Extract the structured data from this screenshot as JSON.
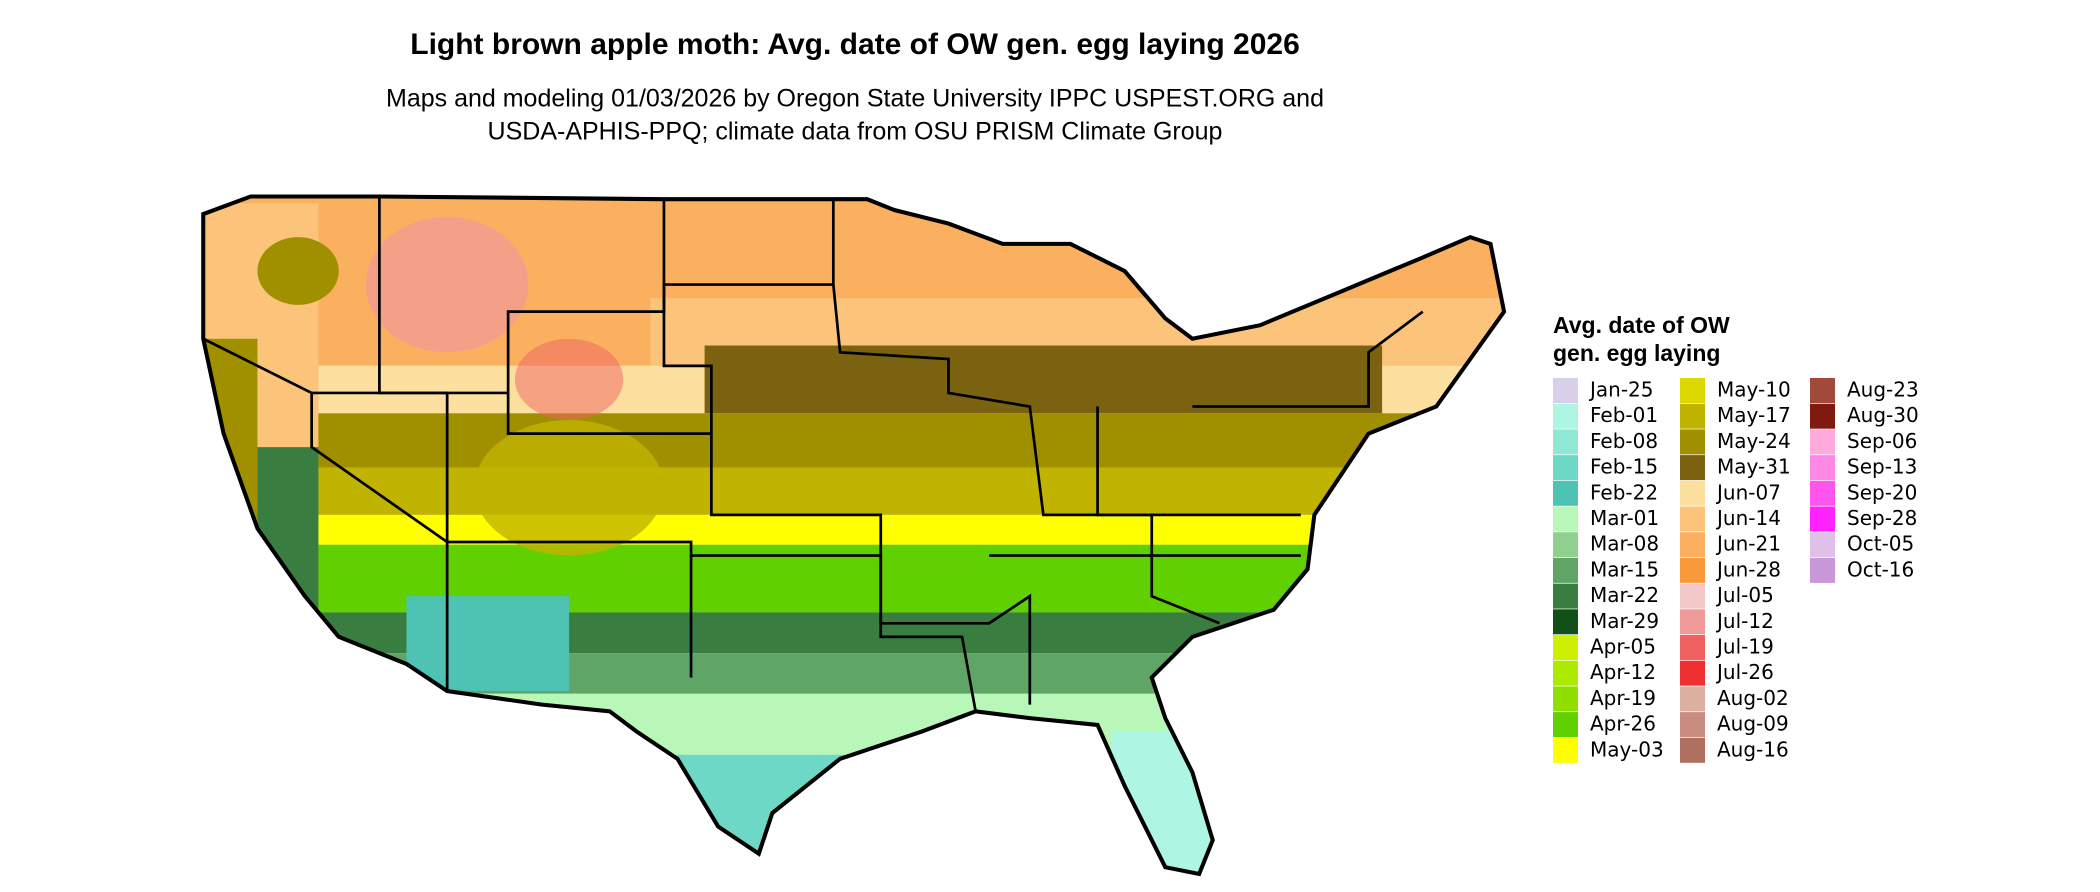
{
  "header": {
    "title": "Light brown apple moth: Avg. date of OW gen. egg laying 2026",
    "subtitle": [
      "Maps and modeling 01/03/2026 by Oregon State University IPPC USPEST.ORG and",
      "USDA-APHIS-PPQ; climate data from OSU PRISM Climate Group"
    ]
  },
  "legend": {
    "title": [
      "Avg. date of OW",
      "gen. egg laying"
    ],
    "items": [
      {
        "label": "Jan-25",
        "color": "#d8d0ea"
      },
      {
        "label": "Feb-01",
        "color": "#aef5e3"
      },
      {
        "label": "Feb-08",
        "color": "#8fe8d4"
      },
      {
        "label": "Feb-15",
        "color": "#6dd8c6"
      },
      {
        "label": "Feb-22",
        "color": "#4ec3b4"
      },
      {
        "label": "Mar-01",
        "color": "#b8f7b8"
      },
      {
        "label": "Mar-08",
        "color": "#8fd08f"
      },
      {
        "label": "Mar-15",
        "color": "#5fa565"
      },
      {
        "label": "Mar-22",
        "color": "#3a7d40"
      },
      {
        "label": "Mar-29",
        "color": "#12501a"
      },
      {
        "label": "Apr-05",
        "color": "#ccf000"
      },
      {
        "label": "Apr-12",
        "color": "#aeea00"
      },
      {
        "label": "Apr-19",
        "color": "#8fe000"
      },
      {
        "label": "Apr-26",
        "color": "#60d000"
      },
      {
        "label": "May-03",
        "color": "#ffff00"
      },
      {
        "label": "May-10",
        "color": "#ddd800"
      },
      {
        "label": "May-17",
        "color": "#c0b400"
      },
      {
        "label": "May-24",
        "color": "#a09000"
      },
      {
        "label": "May-31",
        "color": "#7a6210"
      },
      {
        "label": "Jun-07",
        "color": "#fde0a0"
      },
      {
        "label": "Jun-14",
        "color": "#fcc47a"
      },
      {
        "label": "Jun-21",
        "color": "#fbb060"
      },
      {
        "label": "Jun-28",
        "color": "#f89a3a"
      },
      {
        "label": "Jul-05",
        "color": "#f3c8c8"
      },
      {
        "label": "Jul-12",
        "color": "#f19a9a"
      },
      {
        "label": "Jul-19",
        "color": "#f06262"
      },
      {
        "label": "Jul-26",
        "color": "#f03030"
      },
      {
        "label": "Aug-02",
        "color": "#dcb0a0"
      },
      {
        "label": "Aug-09",
        "color": "#c88c80"
      },
      {
        "label": "Aug-16",
        "color": "#b07060"
      },
      {
        "label": "Aug-23",
        "color": "#a04a3a"
      },
      {
        "label": "Aug-30",
        "color": "#801a10"
      },
      {
        "label": "Sep-06",
        "color": "#ffaadd"
      },
      {
        "label": "Sep-13",
        "color": "#ff88e6"
      },
      {
        "label": "Sep-20",
        "color": "#ff55ee"
      },
      {
        "label": "Sep-28",
        "color": "#ff22ff"
      },
      {
        "label": "Oct-05",
        "color": "#e0c0e8"
      },
      {
        "label": "Oct-16",
        "color": "#c898d8"
      }
    ]
  }
}
